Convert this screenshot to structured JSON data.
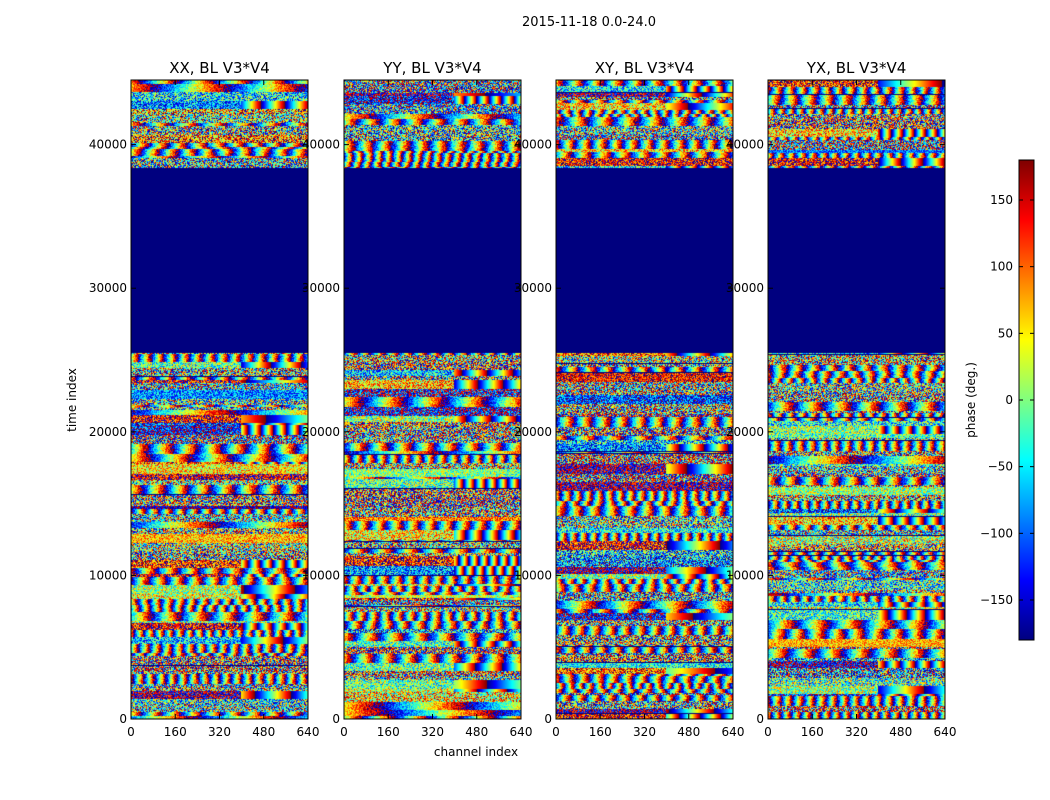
{
  "chart_data": {
    "type": "heatmap",
    "suptitle": "2015-11-18 0.0-24.0",
    "panels": [
      {
        "title": "XX, BL V3*V4"
      },
      {
        "title": "YY, BL V3*V4"
      },
      {
        "title": "XY, BL V3*V4"
      },
      {
        "title": "YX, BL V3*V4"
      }
    ],
    "xlabel": "channel index",
    "ylabel": "time index",
    "xlim": [
      0,
      640
    ],
    "ylim": [
      0,
      44500
    ],
    "xticks": [
      0,
      160,
      320,
      480,
      640
    ],
    "yticks": [
      0,
      10000,
      20000,
      30000,
      40000
    ],
    "flagged_gap": {
      "from": 25500,
      "to": 38400,
      "value": -180
    },
    "colorbar": {
      "label": "phase (deg.)",
      "range": [
        -180,
        180
      ],
      "ticks": [
        -150,
        -100,
        -50,
        0,
        50,
        100,
        150
      ],
      "tick_labels": [
        "−150",
        "−100",
        "−50",
        "0",
        "50",
        "100",
        "150"
      ],
      "colormap": "jet"
    },
    "colormap_stops": [
      "#00007f",
      "#0000ff",
      "#0080ff",
      "#00ffff",
      "#80ff80",
      "#ffff00",
      "#ff8000",
      "#ff0000",
      "#7f0000"
    ]
  }
}
